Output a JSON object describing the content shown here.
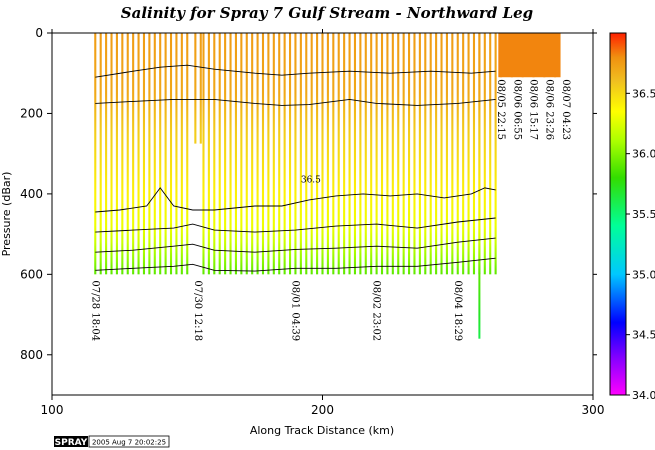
{
  "chart_data": {
    "type": "heatmap",
    "title": "Salinity for Spray 7 Gulf Stream - Northward Leg",
    "xlabel": "Along Track Distance (km)",
    "ylabel": "Pressure (dBar)",
    "xlim": [
      100,
      300
    ],
    "ylim": [
      0,
      900
    ],
    "y_reversed": true,
    "x_ticks": [
      "100",
      "200",
      "300"
    ],
    "y_ticks": [
      "0",
      "200",
      "400",
      "600",
      "800"
    ],
    "colorbar": {
      "range": [
        34.0,
        37.0
      ],
      "ticks": [
        "34.0",
        "34.5",
        "35.0",
        "35.5",
        "36.0",
        "36.5"
      ],
      "stops": [
        {
          "v": 34.0,
          "color": "#ff00ff"
        },
        {
          "v": 34.3,
          "color": "#8800ff"
        },
        {
          "v": 34.6,
          "color": "#0000ff"
        },
        {
          "v": 35.0,
          "color": "#00c8ff"
        },
        {
          "v": 35.4,
          "color": "#00ff99"
        },
        {
          "v": 35.8,
          "color": "#33dd00"
        },
        {
          "v": 36.1,
          "color": "#aaff00"
        },
        {
          "v": 36.35,
          "color": "#ffff00"
        },
        {
          "v": 36.6,
          "color": "#f0c020"
        },
        {
          "v": 36.8,
          "color": "#f09010"
        },
        {
          "v": 37.0,
          "color": "#ff2000"
        }
      ]
    },
    "contour_label": "36.5",
    "profiles_segments": [
      {
        "x_start": 116,
        "x_end": 151,
        "spacing": 2.0,
        "max_p": 600
      },
      {
        "x_start": 153,
        "x_end": 155,
        "spacing": 2.0,
        "max_p": 275
      },
      {
        "x_start": 156,
        "x_end": 264,
        "spacing": 2.0,
        "max_p": 600
      }
    ],
    "late_profiles": [
      {
        "x": 258,
        "max_p": 760
      },
      {
        "x": 266,
        "max_p": 110
      },
      {
        "x": 270,
        "max_p": 110
      },
      {
        "x": 274,
        "max_p": 110
      },
      {
        "x": 278,
        "max_p": 110
      },
      {
        "x": 282,
        "max_p": 110
      },
      {
        "x": 286,
        "max_p": 110
      }
    ],
    "salinity_profile": [
      {
        "p": 0,
        "s": 36.75
      },
      {
        "p": 150,
        "s": 36.7
      },
      {
        "p": 250,
        "s": 36.55
      },
      {
        "p": 400,
        "s": 36.4
      },
      {
        "p": 480,
        "s": 36.3
      },
      {
        "p": 520,
        "s": 36.2
      },
      {
        "p": 560,
        "s": 36.05
      },
      {
        "p": 600,
        "s": 35.9
      },
      {
        "p": 700,
        "s": 35.7
      },
      {
        "p": 760,
        "s": 35.6
      }
    ],
    "surface_patch": {
      "x_start": 265,
      "x_end": 288,
      "p_start": 0,
      "p_end": 110,
      "s": 36.82
    },
    "contours": [
      {
        "points": [
          [
            116,
            110
          ],
          [
            130,
            95
          ],
          [
            140,
            85
          ],
          [
            150,
            80
          ],
          [
            160,
            90
          ],
          [
            175,
            100
          ],
          [
            185,
            105
          ],
          [
            195,
            100
          ],
          [
            210,
            95
          ],
          [
            225,
            100
          ],
          [
            240,
            95
          ],
          [
            255,
            100
          ],
          [
            264,
            95
          ]
        ]
      },
      {
        "points": [
          [
            116,
            175
          ],
          [
            130,
            170
          ],
          [
            145,
            165
          ],
          [
            160,
            165
          ],
          [
            175,
            175
          ],
          [
            185,
            180
          ],
          [
            195,
            178
          ],
          [
            210,
            165
          ],
          [
            220,
            175
          ],
          [
            235,
            180
          ],
          [
            250,
            175
          ],
          [
            264,
            165
          ]
        ]
      },
      {
        "points": [
          [
            116,
            445
          ],
          [
            125,
            440
          ],
          [
            135,
            430
          ],
          [
            140,
            385
          ],
          [
            145,
            430
          ],
          [
            152,
            440
          ],
          [
            160,
            440
          ],
          [
            175,
            430
          ],
          [
            185,
            430
          ],
          [
            195,
            415
          ],
          [
            205,
            405
          ],
          [
            215,
            400
          ],
          [
            225,
            405
          ],
          [
            235,
            400
          ],
          [
            245,
            410
          ],
          [
            255,
            400
          ],
          [
            260,
            385
          ],
          [
            264,
            390
          ]
        ]
      },
      {
        "points": [
          [
            116,
            495
          ],
          [
            130,
            490
          ],
          [
            145,
            485
          ],
          [
            152,
            475
          ],
          [
            160,
            490
          ],
          [
            175,
            495
          ],
          [
            190,
            490
          ],
          [
            205,
            480
          ],
          [
            220,
            475
          ],
          [
            235,
            485
          ],
          [
            250,
            470
          ],
          [
            264,
            460
          ]
        ]
      },
      {
        "points": [
          [
            116,
            545
          ],
          [
            130,
            540
          ],
          [
            145,
            530
          ],
          [
            152,
            525
          ],
          [
            160,
            540
          ],
          [
            175,
            545
          ],
          [
            190,
            538
          ],
          [
            205,
            535
          ],
          [
            220,
            530
          ],
          [
            235,
            535
          ],
          [
            250,
            520
          ],
          [
            264,
            510
          ]
        ]
      },
      {
        "points": [
          [
            116,
            590
          ],
          [
            130,
            585
          ],
          [
            145,
            580
          ],
          [
            152,
            575
          ],
          [
            160,
            590
          ],
          [
            175,
            592
          ],
          [
            190,
            585
          ],
          [
            205,
            585
          ],
          [
            220,
            580
          ],
          [
            235,
            580
          ],
          [
            250,
            570
          ],
          [
            264,
            560
          ]
        ]
      }
    ],
    "time_labels": [
      {
        "x": 116,
        "p": 610,
        "text": "07/28 18:04"
      },
      {
        "x": 154,
        "p": 610,
        "text": "07/30 12:18"
      },
      {
        "x": 190,
        "p": 610,
        "text": "08/01 04:39"
      },
      {
        "x": 220,
        "p": 610,
        "text": "08/02 23:02"
      },
      {
        "x": 250,
        "p": 610,
        "text": "08/04 18:29"
      },
      {
        "x": 266,
        "p": 110,
        "text": "08/05 22:15"
      },
      {
        "x": 272,
        "p": 110,
        "text": "08/06 06:55"
      },
      {
        "x": 278,
        "p": 110,
        "text": "08/06 15:17"
      },
      {
        "x": 284,
        "p": 110,
        "text": "08/06 23:26"
      },
      {
        "x": 290,
        "p": 110,
        "text": "08/07 04:23"
      }
    ]
  },
  "footer": {
    "badge": "SPRAY",
    "timestamp": "2005 Aug  7 20:02:25"
  }
}
